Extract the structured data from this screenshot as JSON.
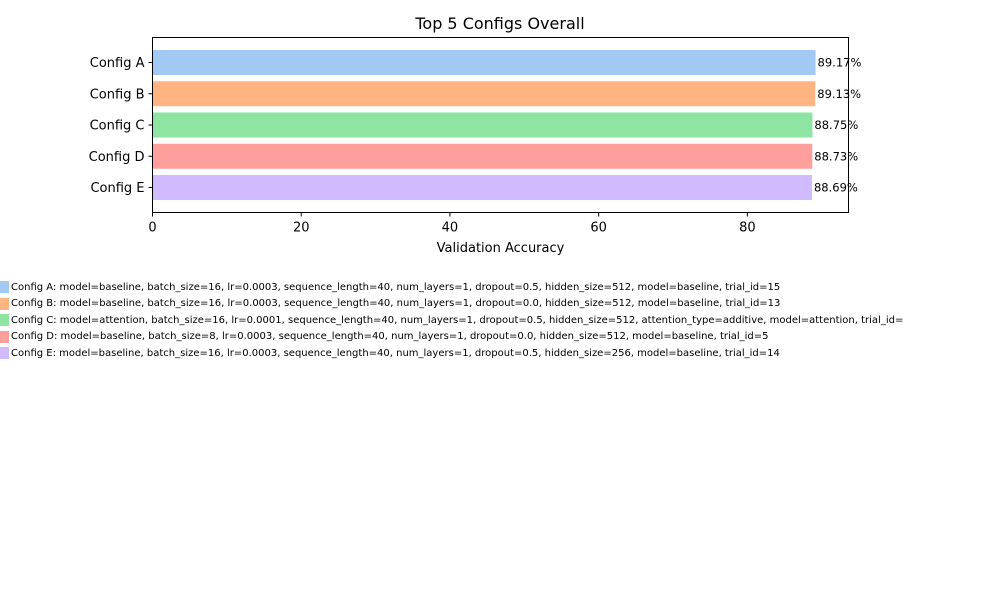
{
  "chart_data": {
    "type": "bar",
    "orientation": "horizontal",
    "title": "Top 5 Configs Overall",
    "xlabel": "Validation Accuracy",
    "ylabel": "",
    "xlim": [
      0,
      93.6
    ],
    "xticks": [
      0,
      20,
      40,
      60,
      80
    ],
    "categories": [
      "Config A",
      "Config B",
      "Config C",
      "Config D",
      "Config E"
    ],
    "values": [
      89.17,
      89.13,
      88.75,
      88.73,
      88.69
    ],
    "value_labels": [
      "89.17%",
      "89.13%",
      "88.75%",
      "88.73%",
      "88.69%"
    ],
    "colors": [
      "#a1c9f4",
      "#ffb482",
      "#8de5a1",
      "#ff9f9b",
      "#d0bbff"
    ],
    "grid": false,
    "legend_placement": "below",
    "legend": [
      "Config A: model=baseline, batch_size=16, lr=0.0003, sequence_length=40, num_layers=1, dropout=0.5, hidden_size=512, model=baseline, trial_id=15",
      "Config B: model=baseline, batch_size=16, lr=0.0003, sequence_length=40, num_layers=1, dropout=0.0, hidden_size=512, model=baseline, trial_id=13",
      "Config C: model=attention, batch_size=16, lr=0.0001, sequence_length=40, num_layers=1, dropout=0.5, hidden_size=512, attention_type=additive, model=attention, trial_id=",
      "Config D: model=baseline, batch_size=8, lr=0.0003, sequence_length=40, num_layers=1, dropout=0.0, hidden_size=512, model=baseline, trial_id=5",
      "Config E: model=baseline, batch_size=16, lr=0.0003, sequence_length=40, num_layers=1, dropout=0.5, hidden_size=256, model=baseline, trial_id=14"
    ]
  }
}
